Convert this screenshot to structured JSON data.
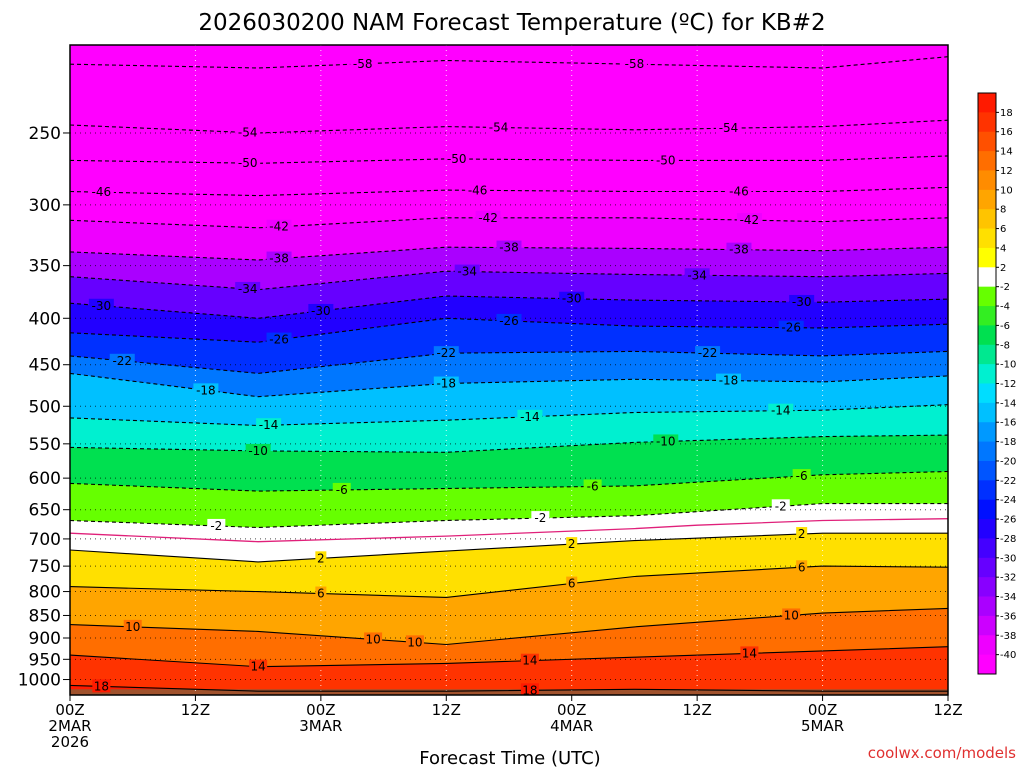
{
  "chart_data": {
    "type": "heatmap",
    "title": "2026030200 NAM Forecast Temperature (ºC) for KB#2",
    "xlabel": "Forecast Time (UTC)",
    "ylabel": "",
    "credit": "coolwx.com/models",
    "x_range_hours": [
      0,
      84
    ],
    "y_log_scale": true,
    "y_range": [
      1040,
      200
    ],
    "y_ticks": [
      "250",
      "300",
      "350",
      "400",
      "450",
      "500",
      "550",
      "600",
      "650",
      "700",
      "750",
      "800",
      "850",
      "900",
      "950",
      "1000"
    ],
    "x_ticks": [
      {
        "hour": 0,
        "line1": "00Z",
        "line2": "2MAR",
        "line3": "2026"
      },
      {
        "hour": 12,
        "line1": "12Z",
        "line2": "",
        "line3": ""
      },
      {
        "hour": 24,
        "line1": "00Z",
        "line2": "3MAR",
        "line3": ""
      },
      {
        "hour": 36,
        "line1": "12Z",
        "line2": "",
        "line3": ""
      },
      {
        "hour": 48,
        "line1": "00Z",
        "line2": "4MAR",
        "line3": ""
      },
      {
        "hour": 60,
        "line1": "12Z",
        "line2": "",
        "line3": ""
      },
      {
        "hour": 72,
        "line1": "00Z",
        "line2": "5MAR",
        "line3": ""
      },
      {
        "hour": 84,
        "line1": "12Z",
        "line2": "",
        "line3": ""
      }
    ],
    "colorbar": {
      "labels": [
        "18",
        "16",
        "14",
        "12",
        "10",
        "8",
        "6",
        "4",
        "2",
        "-2",
        "-4",
        "-6",
        "-8",
        "-10",
        "-12",
        "-14",
        "-16",
        "-18",
        "-20",
        "-22",
        "-24",
        "-26",
        "-28",
        "-30",
        "-32",
        "-34",
        "-36",
        "-38",
        "-40"
      ],
      "colors": [
        "#ff1a00",
        "#ff3300",
        "#ff5000",
        "#ff6e00",
        "#ff8c00",
        "#ffa500",
        "#ffc400",
        "#ffe000",
        "#ffff00",
        "#ffffff",
        "#66ff00",
        "#33ee22",
        "#00e050",
        "#00e890",
        "#00f0d0",
        "#00ddff",
        "#00c0ff",
        "#0099ff",
        "#0077ff",
        "#0055ff",
        "#0030ff",
        "#0010ff",
        "#2200ff",
        "#4400ff",
        "#6600ff",
        "#8800ff",
        "#aa00ff",
        "#cc00ff",
        "#ee00ff",
        "#ff00ff"
      ]
    },
    "isotherms": [
      {
        "value": -58,
        "label": "-58",
        "points": [
          [
            0,
            210
          ],
          [
            18,
            212
          ],
          [
            36,
            208
          ],
          [
            54,
            210
          ],
          [
            72,
            212
          ],
          [
            84,
            206
          ]
        ],
        "label_hours": [
          28,
          54
        ]
      },
      {
        "value": -54,
        "label": "-54",
        "points": [
          [
            0,
            245
          ],
          [
            18,
            250
          ],
          [
            36,
            246
          ],
          [
            54,
            248
          ],
          [
            72,
            246
          ],
          [
            84,
            242
          ]
        ],
        "label_hours": [
          17,
          41,
          63
        ]
      },
      {
        "value": -50,
        "label": "-50",
        "points": [
          [
            0,
            268
          ],
          [
            18,
            270
          ],
          [
            36,
            267
          ],
          [
            54,
            268
          ],
          [
            72,
            268
          ],
          [
            84,
            265
          ]
        ],
        "label_hours": [
          17,
          37,
          57
        ]
      },
      {
        "value": -46,
        "label": "-46",
        "points": [
          [
            0,
            290
          ],
          [
            18,
            293
          ],
          [
            36,
            289
          ],
          [
            54,
            290
          ],
          [
            72,
            290
          ],
          [
            84,
            287
          ]
        ],
        "label_hours": [
          3,
          39,
          64
        ]
      },
      {
        "value": -42,
        "label": "-42",
        "points": [
          [
            0,
            312
          ],
          [
            18,
            318
          ],
          [
            36,
            310
          ],
          [
            54,
            310
          ],
          [
            72,
            313
          ],
          [
            84,
            310
          ]
        ],
        "label_hours": [
          20,
          40,
          65
        ]
      },
      {
        "value": -38,
        "label": "-38",
        "points": [
          [
            0,
            338
          ],
          [
            18,
            345
          ],
          [
            36,
            334
          ],
          [
            54,
            335
          ],
          [
            72,
            337
          ],
          [
            84,
            334
          ]
        ],
        "label_hours": [
          20,
          42,
          64
        ]
      },
      {
        "value": -34,
        "label": "-34",
        "points": [
          [
            0,
            360
          ],
          [
            18,
            372
          ],
          [
            36,
            355
          ],
          [
            54,
            358
          ],
          [
            72,
            360
          ],
          [
            84,
            357
          ]
        ],
        "label_hours": [
          17,
          38,
          60
        ]
      },
      {
        "value": -30,
        "label": "-30",
        "points": [
          [
            0,
            385
          ],
          [
            18,
            400
          ],
          [
            36,
            378
          ],
          [
            54,
            382
          ],
          [
            72,
            384
          ],
          [
            84,
            381
          ]
        ],
        "label_hours": [
          3,
          24,
          48,
          70
        ]
      },
      {
        "value": -26,
        "label": "-26",
        "points": [
          [
            0,
            415
          ],
          [
            18,
            425
          ],
          [
            36,
            400
          ],
          [
            54,
            408
          ],
          [
            72,
            410
          ],
          [
            84,
            406
          ]
        ],
        "label_hours": [
          20,
          42,
          69
        ]
      },
      {
        "value": -22,
        "label": "-22",
        "points": [
          [
            0,
            440
          ],
          [
            18,
            460
          ],
          [
            36,
            437
          ],
          [
            54,
            435
          ],
          [
            72,
            440
          ],
          [
            84,
            435
          ]
        ],
        "label_hours": [
          5,
          36,
          61
        ]
      },
      {
        "value": -18,
        "label": "-18",
        "points": [
          [
            0,
            460
          ],
          [
            18,
            488
          ],
          [
            36,
            472
          ],
          [
            54,
            467
          ],
          [
            72,
            470
          ],
          [
            84,
            463
          ]
        ],
        "label_hours": [
          13,
          36,
          63
        ]
      },
      {
        "value": -14,
        "label": "-14",
        "points": [
          [
            0,
            515
          ],
          [
            18,
            525
          ],
          [
            36,
            518
          ],
          [
            54,
            508
          ],
          [
            72,
            505
          ],
          [
            84,
            498
          ]
        ],
        "label_hours": [
          19,
          44,
          68
        ]
      },
      {
        "value": -10,
        "label": "-10",
        "points": [
          [
            0,
            555
          ],
          [
            18,
            560
          ],
          [
            36,
            562
          ],
          [
            54,
            548
          ],
          [
            72,
            540
          ],
          [
            84,
            538
          ]
        ],
        "label_hours": [
          18,
          57
        ]
      },
      {
        "value": -6,
        "label": "-6",
        "points": [
          [
            0,
            608
          ],
          [
            18,
            620
          ],
          [
            36,
            616
          ],
          [
            54,
            612
          ],
          [
            72,
            595
          ],
          [
            84,
            590
          ]
        ],
        "label_hours": [
          26,
          50,
          70
        ]
      },
      {
        "value": -2,
        "label": "-2",
        "points": [
          [
            0,
            668
          ],
          [
            18,
            680
          ],
          [
            36,
            668
          ],
          [
            54,
            660
          ],
          [
            72,
            640
          ],
          [
            84,
            640
          ]
        ],
        "label_hours": [
          14,
          45,
          68
        ]
      },
      {
        "value": 2,
        "label": "2",
        "points": [
          [
            0,
            720
          ],
          [
            18,
            742
          ],
          [
            36,
            722
          ],
          [
            54,
            703
          ],
          [
            72,
            690
          ],
          [
            84,
            690
          ]
        ],
        "label_hours": [
          24,
          48,
          70
        ]
      },
      {
        "value": 6,
        "label": "6",
        "points": [
          [
            0,
            790
          ],
          [
            18,
            800
          ],
          [
            36,
            812
          ],
          [
            54,
            770
          ],
          [
            72,
            750
          ],
          [
            84,
            752
          ]
        ],
        "label_hours": [
          24,
          48,
          70
        ]
      },
      {
        "value": 10,
        "label": "10",
        "points": [
          [
            0,
            870
          ],
          [
            18,
            885
          ],
          [
            36,
            915
          ],
          [
            54,
            875
          ],
          [
            72,
            845
          ],
          [
            84,
            835
          ]
        ],
        "label_hours": [
          6,
          29,
          33,
          69
        ]
      },
      {
        "value": 14,
        "label": "14",
        "points": [
          [
            0,
            940
          ],
          [
            18,
            968
          ],
          [
            36,
            960
          ],
          [
            54,
            945
          ],
          [
            72,
            930
          ],
          [
            84,
            920
          ]
        ],
        "label_hours": [
          18,
          44,
          65
        ]
      },
      {
        "value": 18,
        "label": "18",
        "points": [
          [
            0,
            1015
          ],
          [
            18,
            1030
          ],
          [
            36,
            1030
          ],
          [
            54,
            1025
          ],
          [
            72,
            1030
          ],
          [
            84,
            1030
          ]
        ],
        "label_hours": [
          3,
          44
        ]
      }
    ],
    "zero_line": {
      "points": [
        [
          0,
          690
        ],
        [
          18,
          705
        ],
        [
          36,
          695
        ],
        [
          54,
          682
        ],
        [
          60,
          676
        ],
        [
          72,
          668
        ],
        [
          84,
          665
        ]
      ],
      "color": "#e0207a"
    }
  }
}
